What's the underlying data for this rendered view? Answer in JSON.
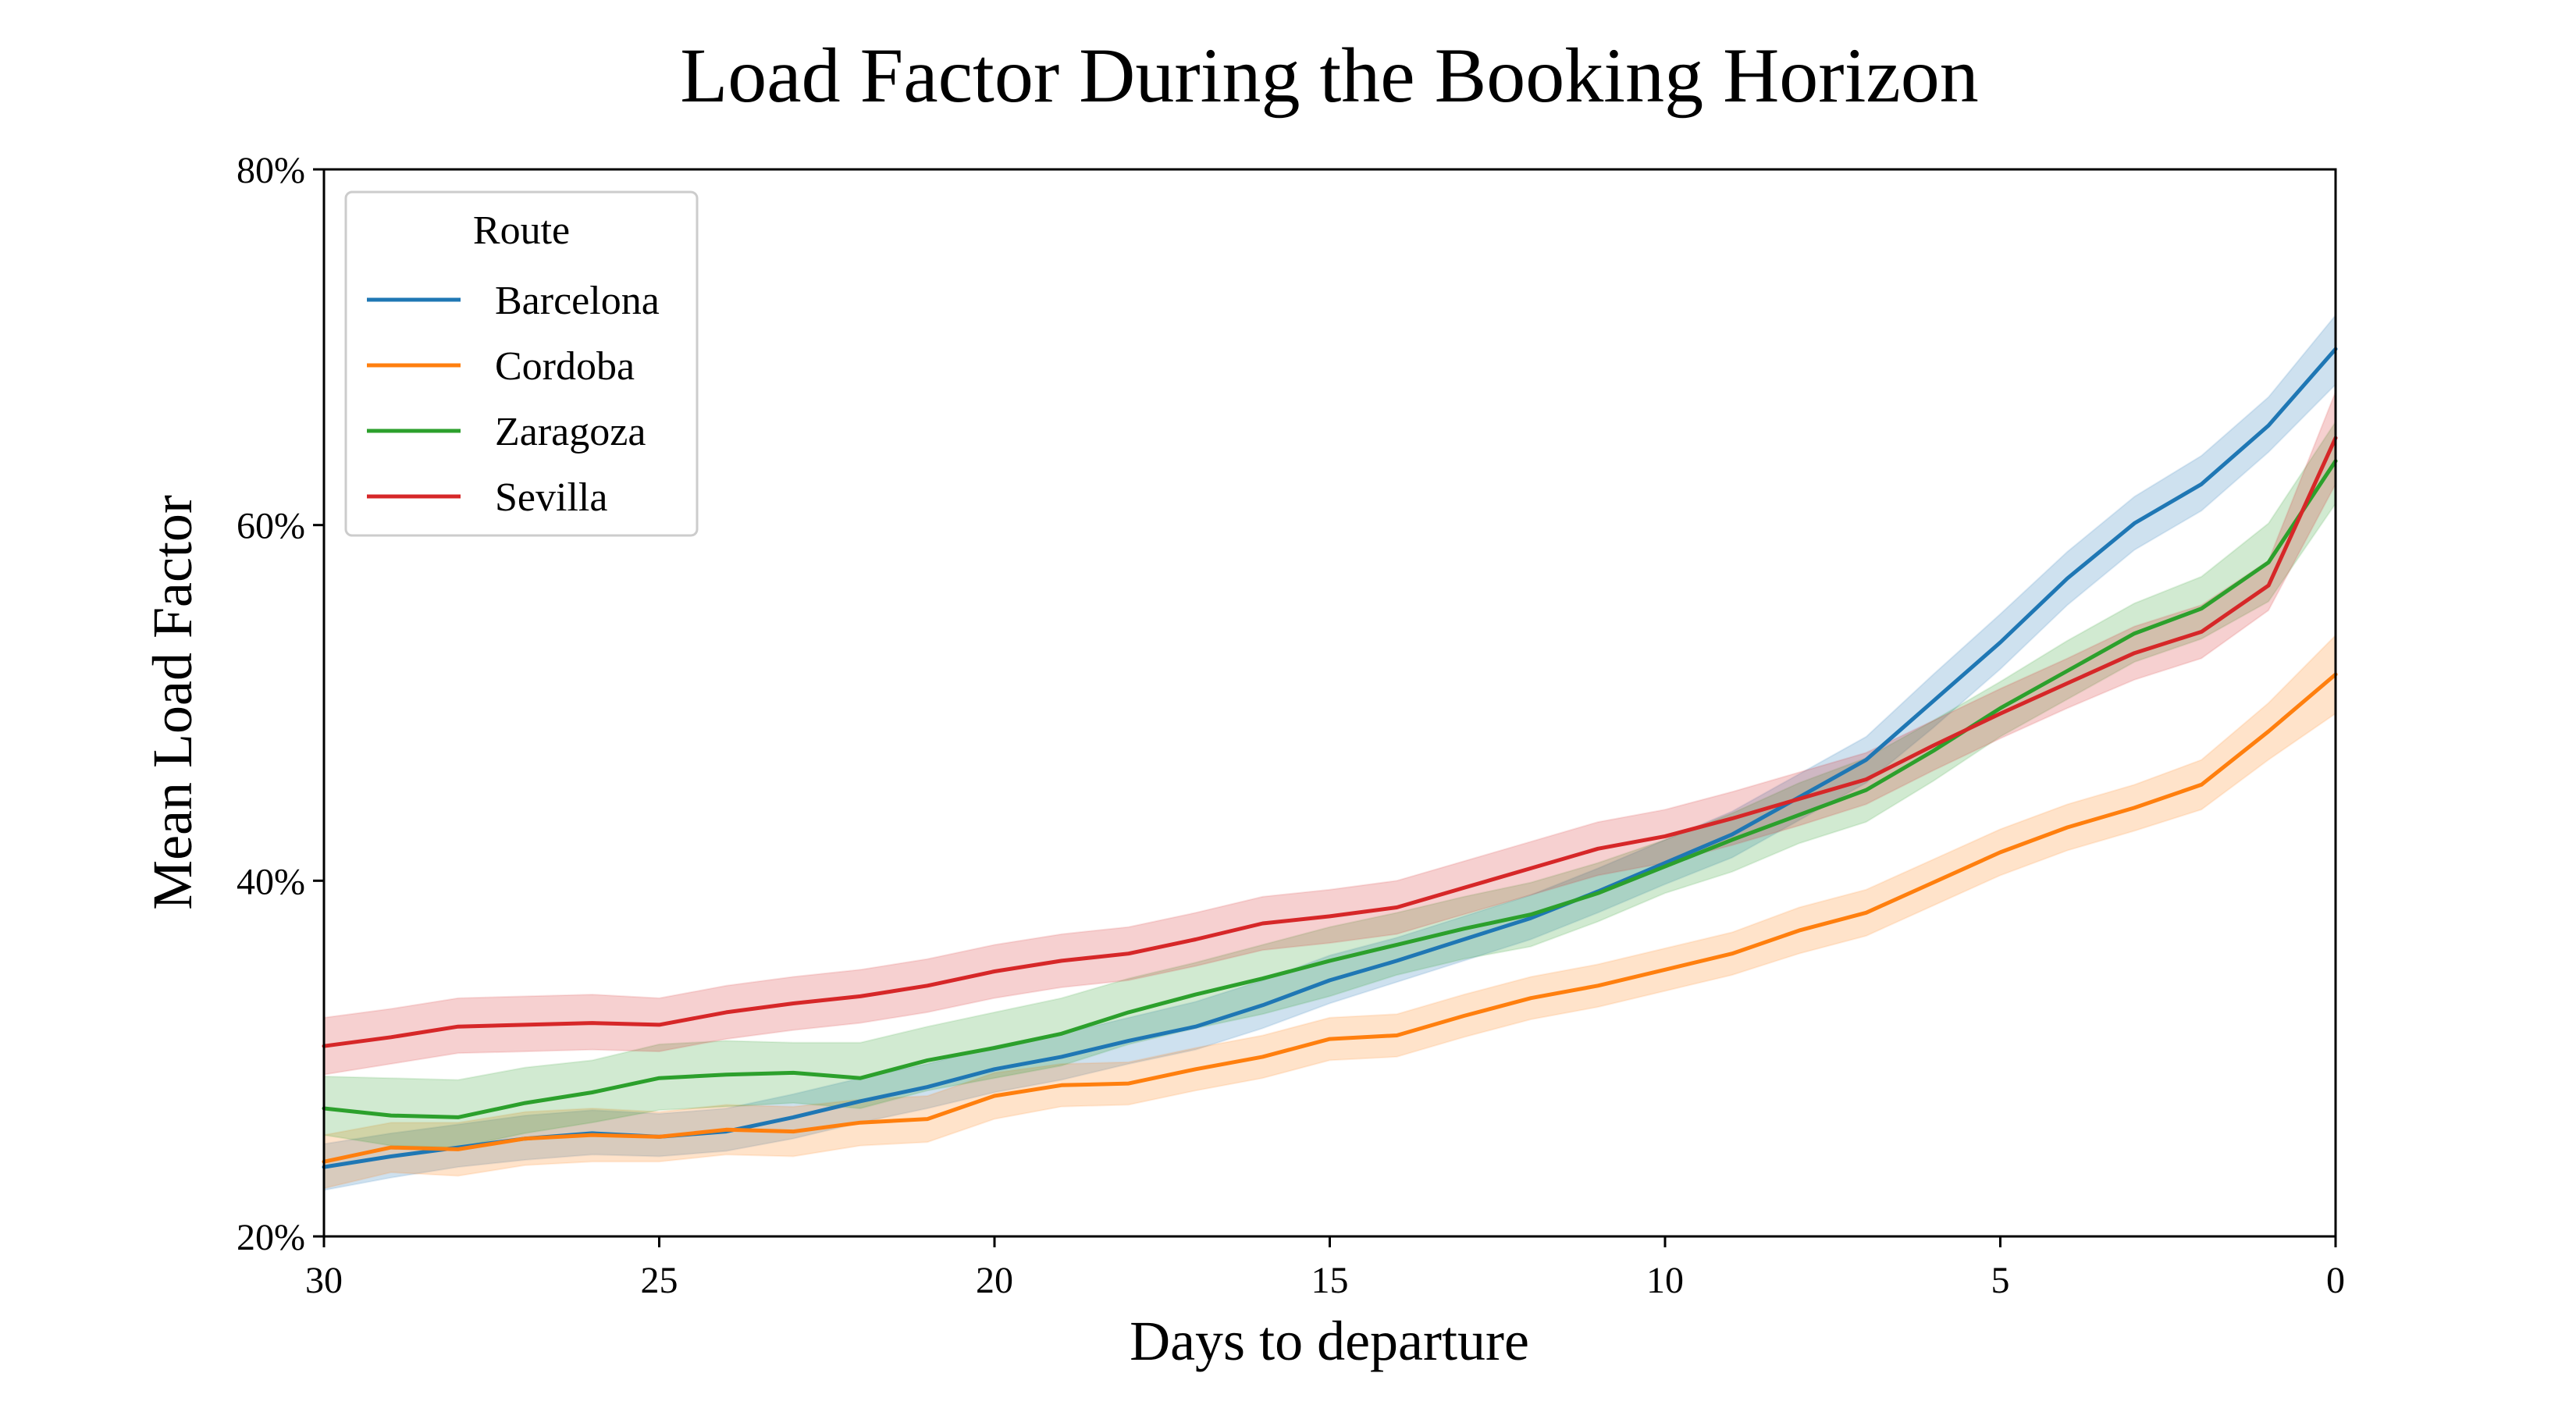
{
  "chart_data": {
    "type": "line",
    "title": "Load Factor During the Booking Horizon",
    "xlabel": "Days to departure",
    "ylabel": "Mean Load Factor",
    "xlim": [
      30,
      0
    ],
    "ylim": [
      20,
      80
    ],
    "xticks": [
      30,
      25,
      20,
      15,
      10,
      5,
      0
    ],
    "xtick_labels": [
      "30",
      "25",
      "20",
      "15",
      "10",
      "5",
      "0"
    ],
    "yticks": [
      20,
      40,
      60,
      80
    ],
    "ytick_labels": [
      "20%",
      "40%",
      "60%",
      "80%"
    ],
    "grid": false,
    "legend": {
      "title": "Route",
      "position": "top-left"
    },
    "x": [
      30,
      29,
      28,
      27,
      26,
      25,
      24,
      23,
      22,
      21,
      20,
      19,
      18,
      17,
      16,
      15,
      14,
      13,
      12,
      11,
      10,
      9,
      8,
      7,
      6,
      5,
      4,
      3,
      2,
      1,
      0
    ],
    "series": [
      {
        "name": "Barcelona",
        "color": "#1f77b4",
        "values": [
          23.9,
          24.5,
          25.0,
          25.5,
          25.8,
          25.6,
          25.9,
          26.7,
          27.6,
          28.4,
          29.4,
          30.1,
          31.0,
          31.8,
          33.0,
          34.4,
          35.5,
          36.7,
          37.9,
          39.4,
          41.0,
          42.6,
          44.7,
          46.8,
          50.1,
          53.4,
          57.0,
          60.1,
          62.3,
          65.6,
          69.9
        ],
        "lower": [
          22.6,
          23.3,
          23.9,
          24.3,
          24.6,
          24.5,
          24.8,
          25.5,
          26.4,
          27.2,
          28.1,
          28.8,
          29.7,
          30.5,
          31.7,
          33.1,
          34.3,
          35.5,
          36.7,
          38.2,
          39.8,
          41.3,
          43.4,
          45.5,
          48.6,
          51.9,
          55.5,
          58.6,
          60.8,
          64.1,
          67.9
        ],
        "upper": [
          25.2,
          25.8,
          26.3,
          26.8,
          27.1,
          26.9,
          27.2,
          28.0,
          28.9,
          29.7,
          30.7,
          31.4,
          32.3,
          33.2,
          34.4,
          35.8,
          36.8,
          38.0,
          39.2,
          40.7,
          42.3,
          43.9,
          46.0,
          48.1,
          51.6,
          55.0,
          58.5,
          61.6,
          63.9,
          67.2,
          71.8
        ]
      },
      {
        "name": "Cordoba",
        "color": "#ff7f0e",
        "values": [
          24.2,
          25.0,
          24.9,
          25.5,
          25.7,
          25.6,
          26.0,
          25.9,
          26.4,
          26.6,
          27.9,
          28.5,
          28.6,
          29.4,
          30.1,
          31.1,
          31.3,
          32.4,
          33.4,
          34.1,
          35.0,
          35.9,
          37.2,
          38.2,
          39.9,
          41.6,
          43.0,
          44.1,
          45.4,
          48.4,
          51.6
        ],
        "lower": [
          22.7,
          23.6,
          23.4,
          24.0,
          24.2,
          24.2,
          24.6,
          24.5,
          25.1,
          25.3,
          26.6,
          27.3,
          27.4,
          28.2,
          28.9,
          29.9,
          30.1,
          31.2,
          32.2,
          32.9,
          33.8,
          34.7,
          35.9,
          36.9,
          38.6,
          40.3,
          41.7,
          42.8,
          44.0,
          46.8,
          49.4
        ],
        "upper": [
          25.7,
          26.4,
          26.4,
          27.0,
          27.2,
          27.0,
          27.4,
          27.3,
          27.7,
          27.9,
          29.2,
          29.7,
          29.8,
          30.6,
          31.3,
          32.3,
          32.5,
          33.6,
          34.6,
          35.3,
          36.2,
          37.1,
          38.5,
          39.5,
          41.2,
          42.9,
          44.3,
          45.4,
          46.8,
          50.0,
          53.8
        ]
      },
      {
        "name": "Zaragoza",
        "color": "#2ca02c",
        "values": [
          27.2,
          26.8,
          26.7,
          27.5,
          28.1,
          28.9,
          29.1,
          29.2,
          28.9,
          29.9,
          30.6,
          31.4,
          32.6,
          33.6,
          34.5,
          35.5,
          36.4,
          37.3,
          38.1,
          39.3,
          40.8,
          42.3,
          43.7,
          45.1,
          47.3,
          49.7,
          51.8,
          53.9,
          55.3,
          57.9,
          63.6
        ],
        "lower": [
          25.7,
          25.1,
          25.0,
          25.8,
          26.4,
          27.1,
          27.3,
          27.5,
          27.2,
          28.2,
          28.9,
          29.6,
          30.8,
          31.7,
          32.5,
          33.5,
          34.7,
          35.6,
          36.3,
          37.7,
          39.3,
          40.5,
          42.1,
          43.3,
          45.6,
          48.1,
          50.2,
          52.3,
          53.6,
          55.7,
          61.2
        ],
        "upper": [
          29.0,
          28.9,
          28.8,
          29.5,
          29.9,
          30.8,
          31.0,
          30.9,
          30.9,
          31.8,
          32.6,
          33.4,
          34.5,
          35.4,
          36.4,
          37.4,
          38.2,
          39.1,
          39.9,
          41.0,
          42.3,
          43.8,
          45.5,
          46.9,
          49.0,
          51.2,
          53.5,
          55.6,
          57.1,
          60.1,
          65.8
        ]
      },
      {
        "name": "Sevilla",
        "color": "#d62728",
        "values": [
          30.7,
          31.2,
          31.8,
          31.9,
          32.0,
          31.9,
          32.6,
          33.1,
          33.5,
          34.1,
          34.9,
          35.5,
          35.9,
          36.7,
          37.6,
          38.0,
          38.5,
          39.6,
          40.7,
          41.8,
          42.5,
          43.5,
          44.6,
          45.7,
          47.6,
          49.4,
          51.1,
          52.8,
          54.0,
          56.6,
          64.9
        ],
        "lower": [
          29.1,
          29.7,
          30.3,
          30.4,
          30.5,
          30.4,
          31.1,
          31.6,
          32.0,
          32.6,
          33.4,
          34.0,
          34.4,
          35.2,
          36.1,
          36.5,
          37.0,
          38.1,
          39.2,
          40.3,
          41.0,
          42.0,
          43.1,
          44.3,
          46.2,
          48.0,
          49.7,
          51.3,
          52.5,
          55.2,
          62.3
        ],
        "upper": [
          32.3,
          32.8,
          33.4,
          33.5,
          33.6,
          33.4,
          34.1,
          34.6,
          35.0,
          35.6,
          36.4,
          37.0,
          37.4,
          38.2,
          39.1,
          39.5,
          40.0,
          41.1,
          42.2,
          43.3,
          44.0,
          45.0,
          46.1,
          47.2,
          49.0,
          50.8,
          52.5,
          54.3,
          55.5,
          58.0,
          67.5
        ]
      }
    ]
  }
}
